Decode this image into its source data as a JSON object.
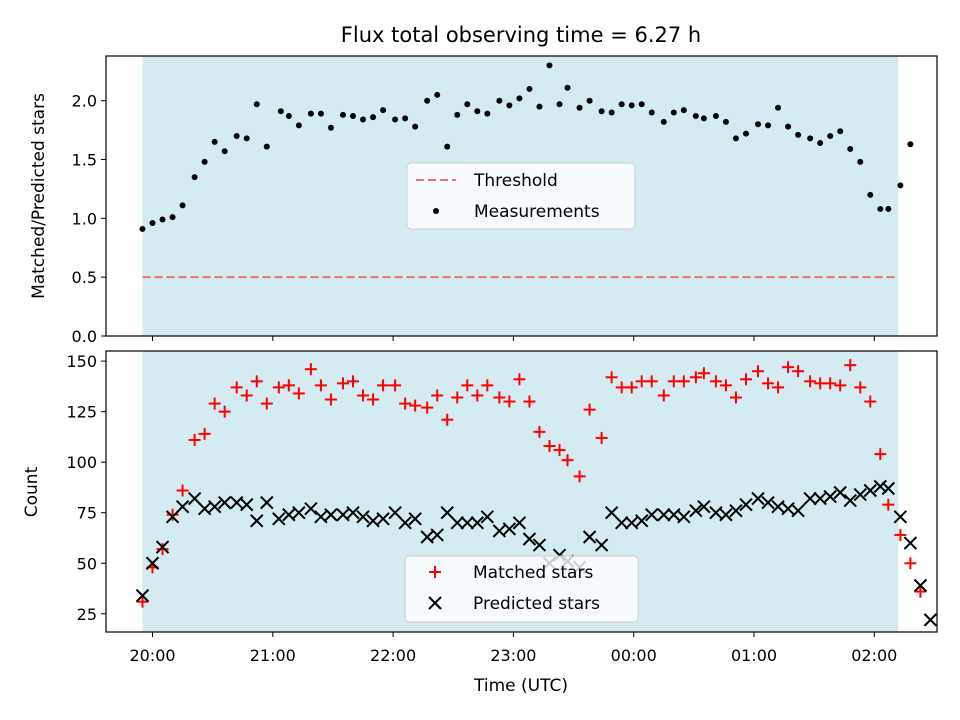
{
  "figure": {
    "title": "Flux total observing time = 6.27 h",
    "xlabel": "Time (UTC)",
    "shade_color": "#d4ebf2",
    "shade_range": [
      "19:55",
      "02:12"
    ]
  },
  "chart_data": [
    {
      "type": "scatter",
      "title": "Flux total observing time = 6.27 h",
      "xlabel": "",
      "ylabel": "Matched/Predicted stars",
      "ylim": [
        0,
        2.38
      ],
      "yticks": [
        "0.0",
        "0.5",
        "1.0",
        "1.5",
        "2.0"
      ],
      "grid": false,
      "legend_position": "center",
      "threshold": {
        "name": "Threshold",
        "value": 0.5,
        "color": "#f07070",
        "style": "dashed"
      },
      "series": [
        {
          "name": "Measurements",
          "color": "#000000",
          "marker": "dot",
          "points": [
            [
              "19:55",
              0.91
            ],
            [
              "20:00",
              0.96
            ],
            [
              "20:05",
              0.99
            ],
            [
              "20:10",
              1.01
            ],
            [
              "20:15",
              1.11
            ],
            [
              "20:21",
              1.35
            ],
            [
              "20:26",
              1.48
            ],
            [
              "20:31",
              1.65
            ],
            [
              "20:36",
              1.57
            ],
            [
              "20:42",
              1.7
            ],
            [
              "20:47",
              1.68
            ],
            [
              "20:52",
              1.97
            ],
            [
              "20:57",
              1.61
            ],
            [
              "21:04",
              1.91
            ],
            [
              "21:08",
              1.87
            ],
            [
              "21:13",
              1.79
            ],
            [
              "21:19",
              1.89
            ],
            [
              "21:24",
              1.89
            ],
            [
              "21:29",
              1.77
            ],
            [
              "21:35",
              1.88
            ],
            [
              "21:40",
              1.87
            ],
            [
              "21:45",
              1.84
            ],
            [
              "21:50",
              1.86
            ],
            [
              "21:55",
              1.92
            ],
            [
              "22:01",
              1.84
            ],
            [
              "22:06",
              1.85
            ],
            [
              "22:11",
              1.78
            ],
            [
              "22:17",
              2.0
            ],
            [
              "22:22",
              2.05
            ],
            [
              "22:27",
              1.61
            ],
            [
              "22:32",
              1.88
            ],
            [
              "22:37",
              1.97
            ],
            [
              "22:42",
              1.91
            ],
            [
              "22:47",
              1.89
            ],
            [
              "22:53",
              2.0
            ],
            [
              "22:58",
              1.96
            ],
            [
              "23:03",
              2.02
            ],
            [
              "23:08",
              2.1
            ],
            [
              "23:13",
              1.95
            ],
            [
              "23:18",
              2.3
            ],
            [
              "23:23",
              1.97
            ],
            [
              "23:27",
              2.11
            ],
            [
              "23:33",
              1.94
            ],
            [
              "23:38",
              2.0
            ],
            [
              "23:44",
              1.91
            ],
            [
              "23:49",
              1.9
            ],
            [
              "23:54",
              1.97
            ],
            [
              "23:59",
              1.96
            ],
            [
              "00:04",
              1.97
            ],
            [
              "00:09",
              1.9
            ],
            [
              "00:15",
              1.82
            ],
            [
              "00:20",
              1.9
            ],
            [
              "00:25",
              1.92
            ],
            [
              "00:31",
              1.87
            ],
            [
              "00:35",
              1.85
            ],
            [
              "00:41",
              1.87
            ],
            [
              "00:46",
              1.82
            ],
            [
              "00:51",
              1.68
            ],
            [
              "00:56",
              1.72
            ],
            [
              "01:02",
              1.8
            ],
            [
              "01:07",
              1.79
            ],
            [
              "01:12",
              1.94
            ],
            [
              "01:17",
              1.78
            ],
            [
              "01:22",
              1.71
            ],
            [
              "01:28",
              1.68
            ],
            [
              "01:33",
              1.64
            ],
            [
              "01:38",
              1.7
            ],
            [
              "01:43",
              1.74
            ],
            [
              "01:48",
              1.59
            ],
            [
              "01:53",
              1.48
            ],
            [
              "01:58",
              1.2
            ],
            [
              "02:03",
              1.08
            ],
            [
              "02:07",
              1.08
            ],
            [
              "02:13",
              1.28
            ],
            [
              "02:18",
              1.63
            ]
          ]
        }
      ]
    },
    {
      "type": "scatter",
      "xlabel": "Time (UTC)",
      "ylabel": "Count",
      "ylim": [
        16,
        155
      ],
      "yticks": [
        "25",
        "50",
        "75",
        "100",
        "125",
        "150"
      ],
      "xticks": [
        "20:00",
        "21:00",
        "22:00",
        "23:00",
        "00:00",
        "01:00",
        "02:00"
      ],
      "grid": false,
      "legend_position": "lower center",
      "series": [
        {
          "name": "Matched stars",
          "color": "#ff0000",
          "marker": "plus",
          "points": [
            [
              "19:55",
              31
            ],
            [
              "20:00",
              48
            ],
            [
              "20:05",
              57
            ],
            [
              "20:10",
              74
            ],
            [
              "20:15",
              86
            ],
            [
              "20:21",
              111
            ],
            [
              "20:26",
              114
            ],
            [
              "20:31",
              129
            ],
            [
              "20:36",
              125
            ],
            [
              "20:42",
              137
            ],
            [
              "20:47",
              133
            ],
            [
              "20:52",
              140
            ],
            [
              "20:57",
              129
            ],
            [
              "21:03",
              137
            ],
            [
              "21:08",
              138
            ],
            [
              "21:13",
              134
            ],
            [
              "21:19",
              146
            ],
            [
              "21:24",
              138
            ],
            [
              "21:29",
              131
            ],
            [
              "21:35",
              139
            ],
            [
              "21:40",
              140
            ],
            [
              "21:45",
              133
            ],
            [
              "21:50",
              131
            ],
            [
              "21:55",
              138
            ],
            [
              "22:01",
              138
            ],
            [
              "22:06",
              129
            ],
            [
              "22:11",
              128
            ],
            [
              "22:17",
              127
            ],
            [
              "22:22",
              133
            ],
            [
              "22:27",
              121
            ],
            [
              "22:32",
              132
            ],
            [
              "22:37",
              138
            ],
            [
              "22:42",
              133
            ],
            [
              "22:47",
              138
            ],
            [
              "22:53",
              132
            ],
            [
              "22:58",
              130
            ],
            [
              "23:03",
              141
            ],
            [
              "23:08",
              130
            ],
            [
              "23:13",
              115
            ],
            [
              "23:18",
              108
            ],
            [
              "23:23",
              106
            ],
            [
              "23:27",
              101
            ],
            [
              "23:33",
              93
            ],
            [
              "23:38",
              126
            ],
            [
              "23:44",
              112
            ],
            [
              "23:49",
              142
            ],
            [
              "23:54",
              137
            ],
            [
              "23:59",
              137
            ],
            [
              "00:04",
              140
            ],
            [
              "00:09",
              140
            ],
            [
              "00:15",
              133
            ],
            [
              "00:20",
              140
            ],
            [
              "00:25",
              140
            ],
            [
              "00:31",
              142
            ],
            [
              "00:35",
              144
            ],
            [
              "00:41",
              140
            ],
            [
              "00:46",
              138
            ],
            [
              "00:51",
              132
            ],
            [
              "00:56",
              141
            ],
            [
              "01:02",
              145
            ],
            [
              "01:07",
              139
            ],
            [
              "01:12",
              137
            ],
            [
              "01:17",
              147
            ],
            [
              "01:22",
              145
            ],
            [
              "01:28",
              140
            ],
            [
              "01:33",
              139
            ],
            [
              "01:38",
              139
            ],
            [
              "01:43",
              138
            ],
            [
              "01:48",
              148
            ],
            [
              "01:53",
              137
            ],
            [
              "01:58",
              130
            ],
            [
              "02:03",
              104
            ],
            [
              "02:07",
              79
            ],
            [
              "02:13",
              64
            ],
            [
              "02:18",
              50
            ],
            [
              "02:23",
              36
            ]
          ]
        },
        {
          "name": "Predicted stars",
          "color": "#000000",
          "marker": "x",
          "points": [
            [
              "19:55",
              34
            ],
            [
              "20:00",
              50
            ],
            [
              "20:05",
              58
            ],
            [
              "20:10",
              73
            ],
            [
              "20:15",
              78
            ],
            [
              "20:21",
              82
            ],
            [
              "20:26",
              77
            ],
            [
              "20:31",
              78
            ],
            [
              "20:36",
              80
            ],
            [
              "20:42",
              80
            ],
            [
              "20:47",
              79
            ],
            [
              "20:52",
              71
            ],
            [
              "20:57",
              80
            ],
            [
              "21:03",
              72
            ],
            [
              "21:08",
              74
            ],
            [
              "21:13",
              75
            ],
            [
              "21:19",
              77
            ],
            [
              "21:24",
              73
            ],
            [
              "21:29",
              74
            ],
            [
              "21:35",
              74
            ],
            [
              "21:40",
              75
            ],
            [
              "21:45",
              73
            ],
            [
              "21:50",
              71
            ],
            [
              "21:55",
              72
            ],
            [
              "22:01",
              75
            ],
            [
              "22:06",
              70
            ],
            [
              "22:11",
              72
            ],
            [
              "22:17",
              63
            ],
            [
              "22:22",
              64
            ],
            [
              "22:27",
              75
            ],
            [
              "22:32",
              70
            ],
            [
              "22:37",
              70
            ],
            [
              "22:42",
              70
            ],
            [
              "22:47",
              73
            ],
            [
              "22:53",
              66
            ],
            [
              "22:58",
              67
            ],
            [
              "23:03",
              70
            ],
            [
              "23:08",
              62
            ],
            [
              "23:13",
              59
            ],
            [
              "23:18",
              50
            ],
            [
              "23:23",
              54
            ],
            [
              "23:27",
              51
            ],
            [
              "23:33",
              48
            ],
            [
              "23:38",
              63
            ],
            [
              "23:44",
              59
            ],
            [
              "23:49",
              75
            ],
            [
              "23:54",
              70
            ],
            [
              "23:59",
              70
            ],
            [
              "00:04",
              71
            ],
            [
              "00:09",
              74
            ],
            [
              "00:15",
              74
            ],
            [
              "00:20",
              74
            ],
            [
              "00:25",
              73
            ],
            [
              "00:31",
              76
            ],
            [
              "00:35",
              78
            ],
            [
              "00:41",
              75
            ],
            [
              "00:46",
              74
            ],
            [
              "00:51",
              76
            ],
            [
              "00:56",
              79
            ],
            [
              "01:02",
              82
            ],
            [
              "01:07",
              80
            ],
            [
              "01:12",
              78
            ],
            [
              "01:17",
              77
            ],
            [
              "01:22",
              76
            ],
            [
              "01:28",
              82
            ],
            [
              "01:33",
              82
            ],
            [
              "01:38",
              83
            ],
            [
              "01:43",
              85
            ],
            [
              "01:48",
              81
            ],
            [
              "01:53",
              84
            ],
            [
              "01:58",
              86
            ],
            [
              "02:03",
              88
            ],
            [
              "02:07",
              87
            ],
            [
              "02:13",
              73
            ],
            [
              "02:18",
              60
            ],
            [
              "02:23",
              39
            ],
            [
              "02:28",
              22
            ]
          ]
        }
      ]
    }
  ]
}
